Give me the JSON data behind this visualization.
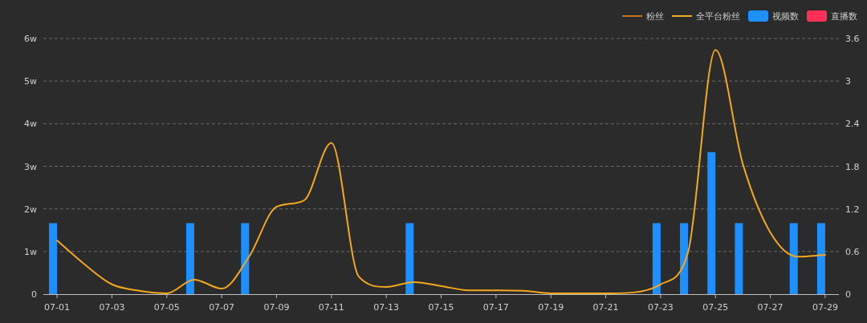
{
  "chart_data": {
    "type": "bar",
    "categories": [
      "07-01",
      null,
      "07-03",
      null,
      "07-05",
      null,
      "07-07",
      null,
      "07-09",
      null,
      "07-11",
      null,
      "07-13",
      null,
      "07-15",
      null,
      "07-17",
      null,
      "07-19",
      null,
      "07-21",
      null,
      "07-23",
      null,
      "07-25",
      null,
      "07-27",
      null,
      "07-29"
    ],
    "series": [
      {
        "type": "line",
        "name": "粉丝",
        "color": "#c8701a",
        "values": [
          null,
          null,
          null,
          null,
          null,
          null,
          null,
          null,
          null,
          null,
          null,
          null,
          null,
          null,
          null,
          null,
          null,
          null,
          null,
          null,
          null,
          null,
          null,
          null,
          null,
          null,
          null,
          null,
          null
        ]
      },
      {
        "type": "line",
        "name": "全平台粉丝",
        "color": "#f5a81c",
        "values": [
          1.26,
          0.7,
          0.23,
          0.08,
          0.02,
          0.34,
          0.13,
          0.88,
          2.05,
          2.2,
          3.55,
          0.41,
          0.17,
          0.28,
          0.19,
          0.09,
          0.09,
          0.08,
          0.02,
          0.02,
          0.02,
          0.04,
          0.23,
          0.98,
          5.73,
          3.05,
          1.45,
          0.88,
          0.92
        ]
      },
      {
        "name": "视频数",
        "color": "#1e8fff",
        "axis": "y2",
        "values": [
          1,
          0,
          0,
          0,
          0,
          1,
          0,
          1,
          0,
          0,
          0,
          0,
          0,
          1,
          0,
          0,
          0,
          0,
          0,
          0,
          0,
          0,
          1,
          1,
          2,
          1,
          0,
          1,
          1
        ]
      },
      {
        "name": "直播数",
        "color": "#ff2f57",
        "axis": "y2",
        "values": [
          0,
          0,
          0,
          0,
          0,
          0,
          0,
          0,
          0,
          0,
          0,
          0,
          0,
          0,
          0,
          0,
          0,
          0,
          0,
          0,
          0,
          0,
          0,
          0,
          0,
          0,
          0,
          0,
          0
        ]
      }
    ],
    "ylim": [
      0,
      6
    ],
    "yticks": [
      0,
      {
        "value": 1,
        "label": "1w"
      },
      {
        "value": 2,
        "label": "2w"
      },
      {
        "value": 3,
        "label": "3w"
      },
      {
        "value": 4,
        "label": "4w"
      },
      {
        "value": 5,
        "label": "5w"
      },
      {
        "value": 6,
        "label": "6w"
      }
    ],
    "y2lim": [
      0,
      3.6
    ],
    "y2ticks": [
      0,
      0.6,
      1.2,
      1.8,
      2.4,
      3,
      3.6
    ],
    "grid": "y",
    "legend": "top right"
  }
}
